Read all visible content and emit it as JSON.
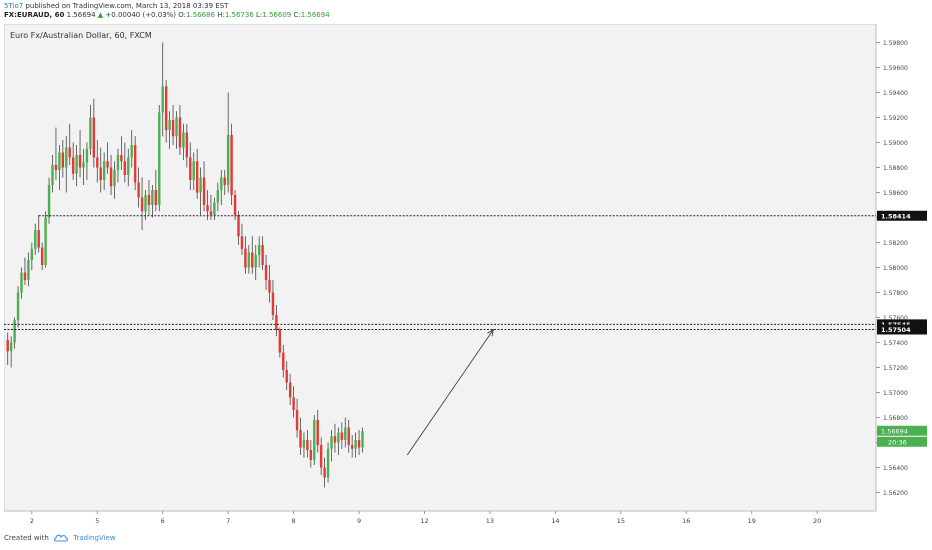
{
  "header": {
    "author": "5Tio7",
    "published": "published on TradingView.com, March 13, 2018 03:39 EST",
    "symbol": "FX:EURAUD, 60",
    "last": "1.56694",
    "change": "+0.00040 (+0.03%)",
    "o_label": "O:",
    "o_val": "1.56686",
    "h_label": "H:",
    "h_val": "1.56736",
    "l_label": "L:",
    "l_val": "1.56609",
    "c_label": "C:",
    "c_val": "1.56694"
  },
  "footer": {
    "created_with": "Created with",
    "brand": "TradingView"
  },
  "chart_data": {
    "type": "candlestick",
    "title": "Euro Fx/Australian Dollar, 60, FXCM",
    "ylim": [
      1.561,
      1.599
    ],
    "y_ticks": [
      "1.56200",
      "1.56400",
      "1.56600",
      "1.56800",
      "1.57000",
      "1.57200",
      "1.57400",
      "1.57600",
      "1.57800",
      "1.58000",
      "1.58200",
      "1.58400",
      "1.58600",
      "1.58800",
      "1.59000",
      "1.59200",
      "1.59400",
      "1.59600",
      "1.59800"
    ],
    "x_ticks": [
      {
        "label": "2",
        "bar": 7
      },
      {
        "label": "5",
        "bar": 26
      },
      {
        "label": "6",
        "bar": 45
      },
      {
        "label": "7",
        "bar": 64
      },
      {
        "label": "8",
        "bar": 83
      },
      {
        "label": "9",
        "bar": 102
      },
      {
        "label": "12",
        "bar": 121
      },
      {
        "label": "13",
        "bar": 140
      },
      {
        "label": "14",
        "bar": 159
      },
      {
        "label": "15",
        "bar": 178
      },
      {
        "label": "16",
        "bar": 197
      },
      {
        "label": "19",
        "bar": 216
      },
      {
        "label": "20",
        "bar": 235
      }
    ],
    "bar_count_span": 252,
    "candles": [
      [
        1.5742,
        1.5748,
        1.5722,
        1.5733
      ],
      [
        1.5733,
        1.5745,
        1.572,
        1.574
      ],
      [
        1.574,
        1.576,
        1.5735,
        1.5758
      ],
      [
        1.5758,
        1.5785,
        1.5752,
        1.578
      ],
      [
        1.578,
        1.58,
        1.5775,
        1.5796
      ],
      [
        1.5796,
        1.5808,
        1.5786,
        1.579
      ],
      [
        1.579,
        1.5812,
        1.5785,
        1.5806
      ],
      [
        1.5806,
        1.582,
        1.5798,
        1.5815
      ],
      [
        1.5815,
        1.5835,
        1.581,
        1.583
      ],
      [
        1.583,
        1.5842,
        1.5812,
        1.5816
      ],
      [
        1.5816,
        1.582,
        1.5798,
        1.5802
      ],
      [
        1.5802,
        1.5845,
        1.58,
        1.584
      ],
      [
        1.584,
        1.5872,
        1.5835,
        1.5866
      ],
      [
        1.5866,
        1.589,
        1.586,
        1.5882
      ],
      [
        1.5882,
        1.5912,
        1.587,
        1.5878
      ],
      [
        1.5878,
        1.5898,
        1.5862,
        1.5892
      ],
      [
        1.5892,
        1.5902,
        1.5872,
        1.588
      ],
      [
        1.588,
        1.5905,
        1.586,
        1.5896
      ],
      [
        1.5896,
        1.5915,
        1.5882,
        1.5888
      ],
      [
        1.5888,
        1.59,
        1.587,
        1.5875
      ],
      [
        1.5875,
        1.5898,
        1.5865,
        1.589
      ],
      [
        1.589,
        1.591,
        1.5872,
        1.588
      ],
      [
        1.588,
        1.5895,
        1.5866,
        1.5884
      ],
      [
        1.5884,
        1.59,
        1.587,
        1.5895
      ],
      [
        1.5895,
        1.593,
        1.589,
        1.592
      ],
      [
        1.592,
        1.5935,
        1.588,
        1.5888
      ],
      [
        1.5888,
        1.5902,
        1.5868,
        1.588
      ],
      [
        1.588,
        1.5896,
        1.586,
        1.587
      ],
      [
        1.587,
        1.5892,
        1.5862,
        1.5885
      ],
      [
        1.5885,
        1.59,
        1.5875,
        1.588
      ],
      [
        1.588,
        1.589,
        1.5858,
        1.5865
      ],
      [
        1.5865,
        1.5885,
        1.5855,
        1.5878
      ],
      [
        1.5878,
        1.5895,
        1.5868,
        1.589
      ],
      [
        1.589,
        1.5905,
        1.5878,
        1.5885
      ],
      [
        1.5885,
        1.59,
        1.5868,
        1.5874
      ],
      [
        1.5874,
        1.5895,
        1.5865,
        1.5888
      ],
      [
        1.5888,
        1.591,
        1.588,
        1.5898
      ],
      [
        1.5898,
        1.5905,
        1.5862,
        1.5868
      ],
      [
        1.5868,
        1.588,
        1.5848,
        1.5856
      ],
      [
        1.5856,
        1.5872,
        1.583,
        1.5845
      ],
      [
        1.5845,
        1.5862,
        1.5838,
        1.5858
      ],
      [
        1.5858,
        1.587,
        1.5842,
        1.585
      ],
      [
        1.585,
        1.5866,
        1.584,
        1.5862
      ],
      [
        1.5862,
        1.5878,
        1.5845,
        1.585
      ],
      [
        1.585,
        1.593,
        1.5845,
        1.5924
      ],
      [
        1.5924,
        1.598,
        1.5905,
        1.5945
      ],
      [
        1.5945,
        1.595,
        1.59,
        1.591
      ],
      [
        1.591,
        1.5925,
        1.5895,
        1.5918
      ],
      [
        1.5918,
        1.593,
        1.5898,
        1.5905
      ],
      [
        1.5905,
        1.5925,
        1.5895,
        1.592
      ],
      [
        1.592,
        1.593,
        1.589,
        1.5896
      ],
      [
        1.5896,
        1.5915,
        1.5886,
        1.5908
      ],
      [
        1.5908,
        1.5915,
        1.588,
        1.5888
      ],
      [
        1.5888,
        1.59,
        1.5862,
        1.587
      ],
      [
        1.587,
        1.5892,
        1.5862,
        1.5885
      ],
      [
        1.5885,
        1.5895,
        1.5855,
        1.586
      ],
      [
        1.586,
        1.588,
        1.5842,
        1.5872
      ],
      [
        1.5872,
        1.5885,
        1.5845,
        1.585
      ],
      [
        1.585,
        1.5862,
        1.5838,
        1.5845
      ],
      [
        1.5845,
        1.5858,
        1.5838,
        1.5842
      ],
      [
        1.5842,
        1.5856,
        1.5838,
        1.5852
      ],
      [
        1.5852,
        1.5868,
        1.5845,
        1.5862
      ],
      [
        1.5862,
        1.5878,
        1.585,
        1.5872
      ],
      [
        1.5872,
        1.5878,
        1.5858,
        1.5866
      ],
      [
        1.5866,
        1.594,
        1.586,
        1.5906
      ],
      [
        1.5906,
        1.5915,
        1.585,
        1.5858
      ],
      [
        1.5858,
        1.5862,
        1.5838,
        1.5842
      ],
      [
        1.5842,
        1.5845,
        1.5818,
        1.5825
      ],
      [
        1.5825,
        1.5835,
        1.581,
        1.5815
      ],
      [
        1.5815,
        1.5825,
        1.5795,
        1.58
      ],
      [
        1.58,
        1.5818,
        1.5795,
        1.5812
      ],
      [
        1.5812,
        1.5825,
        1.5795,
        1.58
      ],
      [
        1.58,
        1.5818,
        1.579,
        1.581
      ],
      [
        1.581,
        1.5825,
        1.58,
        1.5818
      ],
      [
        1.5818,
        1.5825,
        1.5798,
        1.5802
      ],
      [
        1.5802,
        1.581,
        1.5782,
        1.579
      ],
      [
        1.579,
        1.5802,
        1.5772,
        1.578
      ],
      [
        1.578,
        1.579,
        1.5758,
        1.5762
      ],
      [
        1.5762,
        1.577,
        1.5745,
        1.575
      ],
      [
        1.575,
        1.5752,
        1.5728,
        1.5732
      ],
      [
        1.5732,
        1.5738,
        1.5712,
        1.5718
      ],
      [
        1.5718,
        1.5725,
        1.5702,
        1.5708
      ],
      [
        1.5708,
        1.5715,
        1.569,
        1.5696
      ],
      [
        1.5696,
        1.5705,
        1.568,
        1.5686
      ],
      [
        1.5686,
        1.5695,
        1.5664,
        1.567
      ],
      [
        1.567,
        1.568,
        1.565,
        1.5656
      ],
      [
        1.5656,
        1.5668,
        1.5648,
        1.5662
      ],
      [
        1.5662,
        1.567,
        1.5648,
        1.5654
      ],
      [
        1.5654,
        1.5662,
        1.564,
        1.5646
      ],
      [
        1.5646,
        1.5682,
        1.5642,
        1.5678
      ],
      [
        1.5678,
        1.5686,
        1.5652,
        1.5658
      ],
      [
        1.5658,
        1.5664,
        1.5634,
        1.564
      ],
      [
        1.564,
        1.5648,
        1.5624,
        1.5632
      ],
      [
        1.5632,
        1.566,
        1.5628,
        1.5655
      ],
      [
        1.5655,
        1.567,
        1.5645,
        1.5665
      ],
      [
        1.5665,
        1.5675,
        1.5652,
        1.566
      ],
      [
        1.566,
        1.5672,
        1.565,
        1.5668
      ],
      [
        1.5668,
        1.5676,
        1.5655,
        1.5662
      ],
      [
        1.5662,
        1.568,
        1.5656,
        1.5672
      ],
      [
        1.5672,
        1.5678,
        1.5652,
        1.5658
      ],
      [
        1.5658,
        1.5666,
        1.5648,
        1.5655
      ],
      [
        1.5655,
        1.5668,
        1.5648,
        1.5662
      ],
      [
        1.5662,
        1.567,
        1.565,
        1.5656
      ],
      [
        1.5656,
        1.5672,
        1.5652,
        1.5669
      ]
    ],
    "hlines": [
      {
        "price": 1.58414,
        "label": "1.58414",
        "start_bar": 9
      },
      {
        "price": 1.57545,
        "label": "1.57545",
        "start_bar": 0
      },
      {
        "price": 1.57504,
        "label": "1.57504",
        "start_bar": 0
      }
    ],
    "current": {
      "price": 1.56694,
      "label": "1.56694",
      "timer": "20:36"
    },
    "arrow": {
      "from": [
        116,
        1.565
      ],
      "to": [
        141,
        1.57504
      ]
    },
    "colors": {
      "up": "#4caf50",
      "down": "#e53935",
      "wick": "#444444",
      "bg": "#f2f2f2",
      "grid": "#d8d8d8"
    }
  }
}
